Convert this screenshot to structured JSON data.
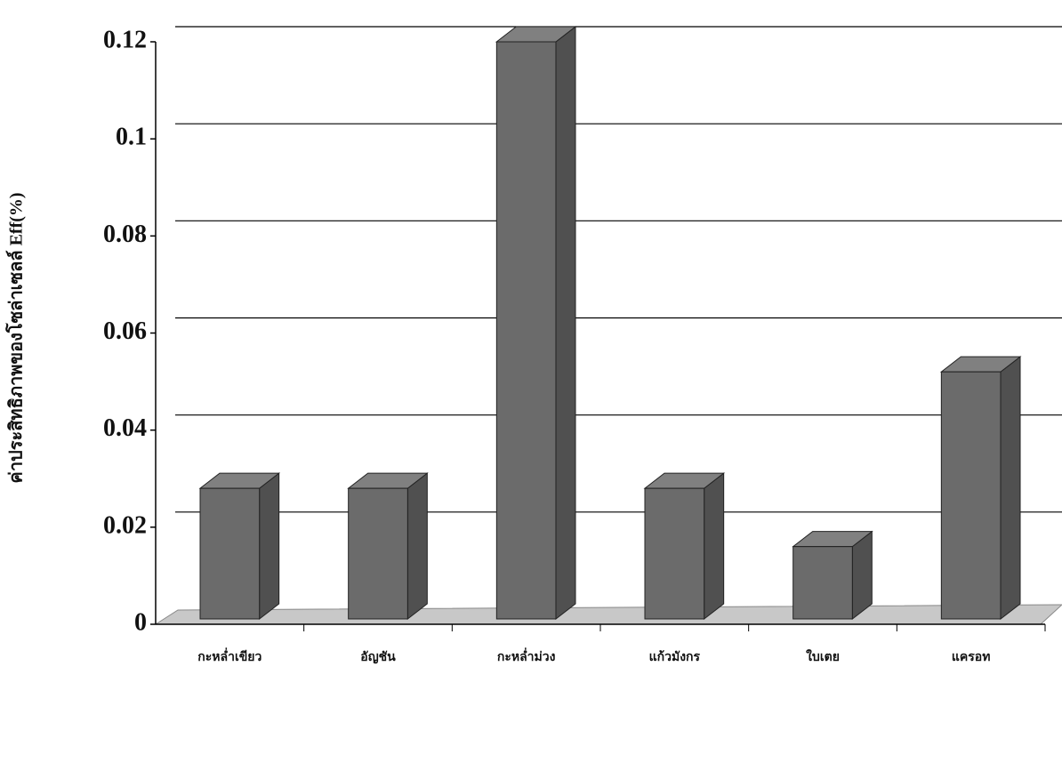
{
  "chart_data": {
    "type": "bar3d",
    "y_label": "ค่าประสิทธิภาพของโซล่าเซลล์ Eff(%)",
    "categories": [
      "กะหล่ำเขียว",
      "อัญชัน",
      "กะหล่ำม่วง",
      "แก้วมังกร",
      "ใบเตย",
      "แครอท"
    ],
    "values": [
      0.028,
      0.028,
      0.12,
      0.028,
      0.016,
      0.052
    ],
    "color": "#6b6b6b",
    "ylim": [
      0,
      0.12
    ],
    "yticks": [
      0,
      0.02,
      0.04,
      0.06,
      0.08,
      0.1,
      0.12
    ],
    "grid": true
  }
}
